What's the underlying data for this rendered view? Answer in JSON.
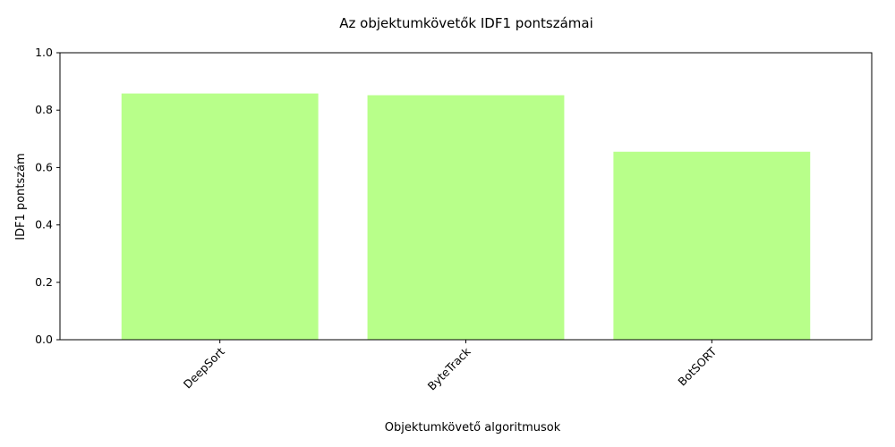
{
  "chart_data": {
    "type": "bar",
    "title": "Az objektumkövetők IDF1 pontszámai",
    "xlabel": "Objektumkövető algoritmusok",
    "ylabel": "IDF1 pontszám",
    "categories": [
      "DeepSort",
      "ByteTrack",
      "BotSORT"
    ],
    "values": [
      0.858,
      0.852,
      0.655
    ],
    "ylim": [
      0,
      1.0
    ],
    "yticks": [
      "0.0",
      "0.2",
      "0.4",
      "0.6",
      "0.8",
      "1.0"
    ],
    "bar_color": "#b8ff8a",
    "grid": false,
    "x_tick_rotation_deg": 45
  }
}
